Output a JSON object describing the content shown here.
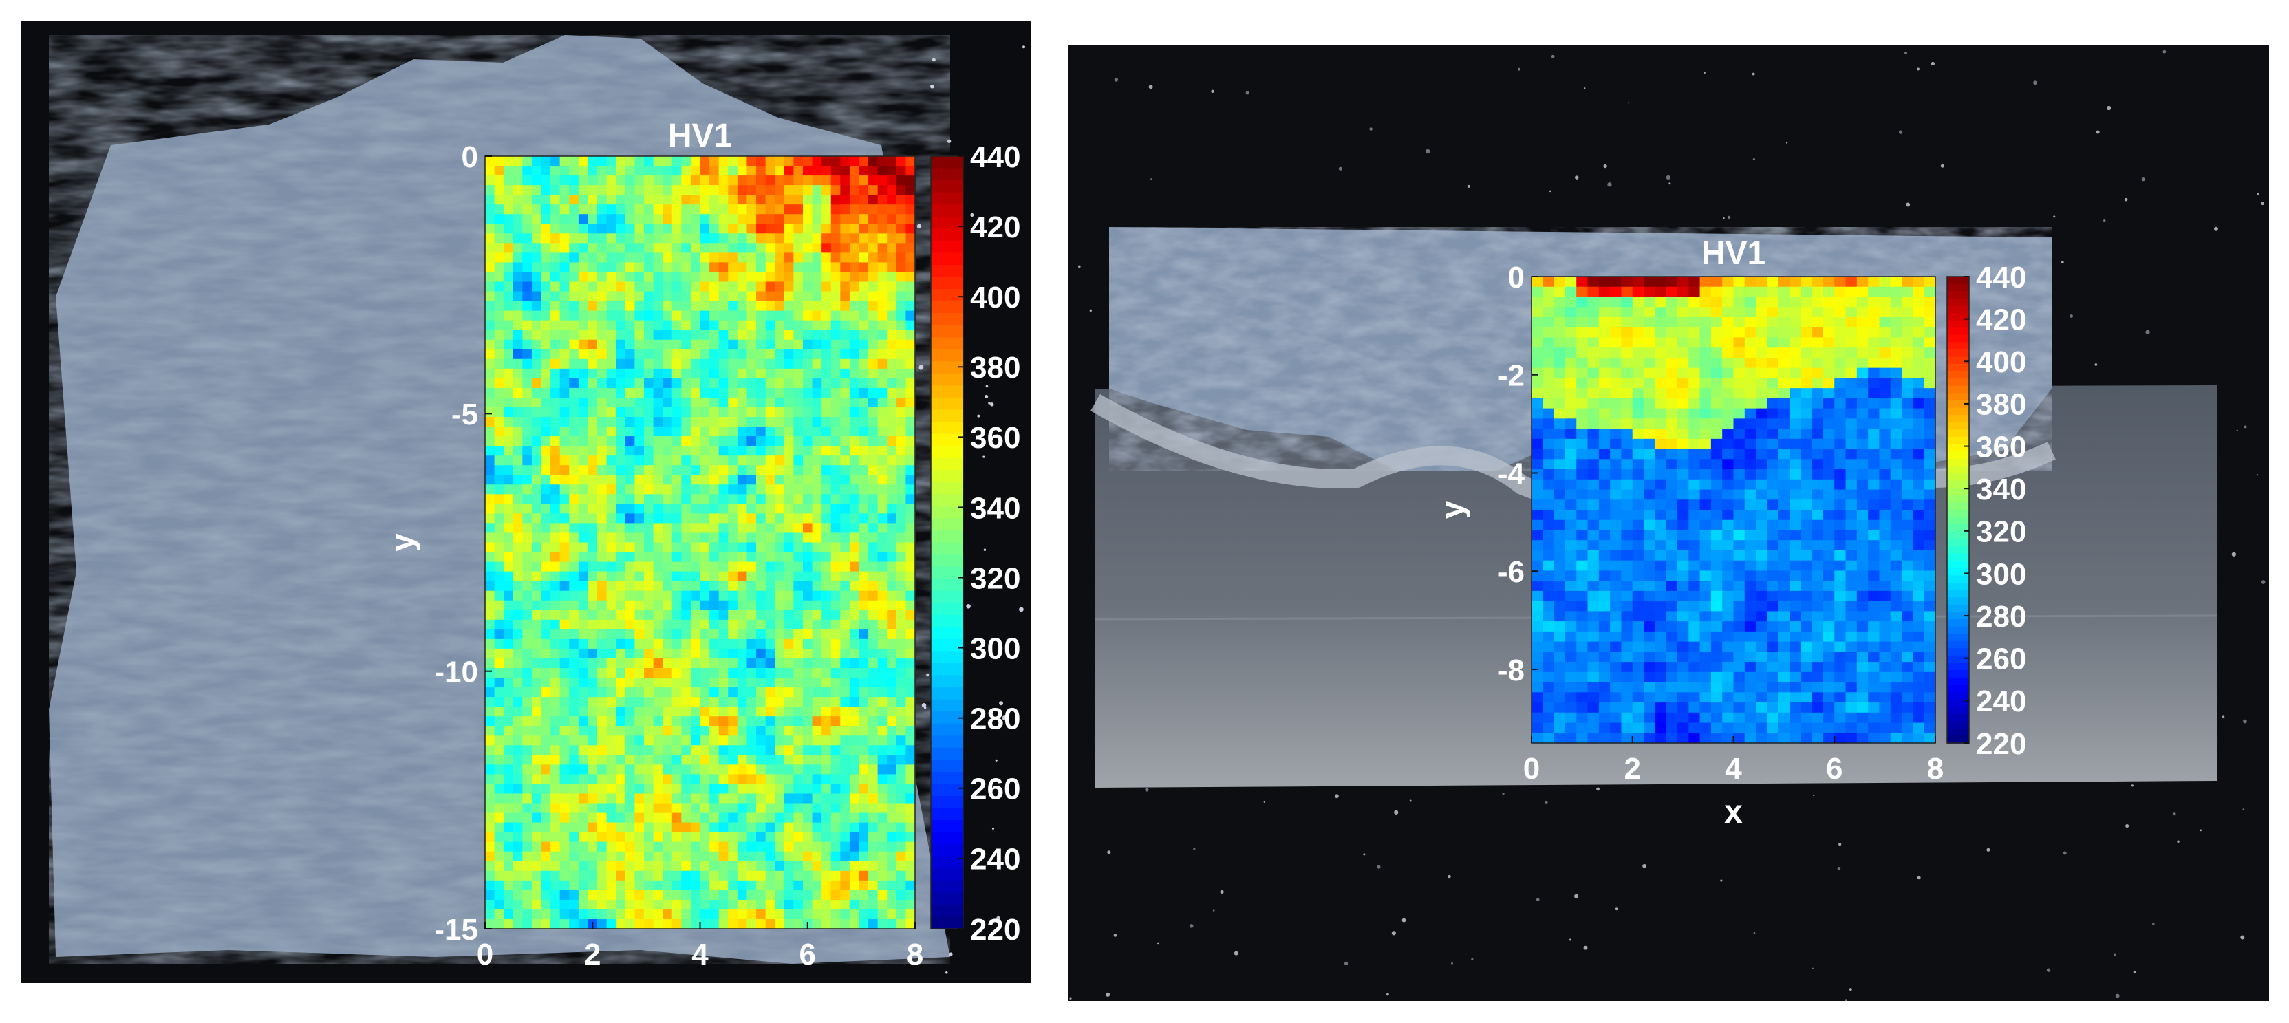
{
  "chart_data": [
    {
      "type": "heatmap",
      "title": "HV1",
      "xlabel": "",
      "ylabel": "y",
      "xlim": [
        0,
        8
      ],
      "ylim": [
        -15,
        0
      ],
      "x_ticks": [
        "0",
        "2",
        "4",
        "6",
        "8"
      ],
      "y_ticks": [
        "0",
        "-5",
        "-10",
        "-15"
      ],
      "colorbar": {
        "min": 220,
        "max": 440,
        "colormap": "jet",
        "ticks": [
          "440",
          "420",
          "400",
          "380",
          "360",
          "340",
          "320",
          "300",
          "280",
          "260",
          "240",
          "220"
        ]
      },
      "value_description": "Hardness field: about 400-430 in the upper right region (x 3-8, y 0 to -3); mostly 320-370 elsewhere with scattered lows near 290-300 and local highs near 380.",
      "colors": {
        "background": "#0b0c0f",
        "sample": "#7d8fa6",
        "text": "#ffffff"
      }
    },
    {
      "type": "heatmap",
      "title": "HV1",
      "xlabel": "x",
      "ylabel": "y",
      "xlim": [
        0,
        8
      ],
      "ylim": [
        -9.5,
        0
      ],
      "x_ticks": [
        "0",
        "2",
        "4",
        "6",
        "8"
      ],
      "y_ticks": [
        "0",
        "-2",
        "-4",
        "-6",
        "-8"
      ],
      "colorbar": {
        "min": 220,
        "max": 440,
        "colormap": "jet",
        "ticks": [
          "440",
          "420",
          "400",
          "380",
          "360",
          "340",
          "320",
          "300",
          "280",
          "260",
          "240",
          "220"
        ]
      },
      "value_description": "Hardness around 330-380 near the top (y 0 to -3), red about 420 at the top edge near x 1-3; sharp drop to 240-300 below a wavy boundary near y -2.5 to -3.5.",
      "colors": {
        "background": "#0b0c0f",
        "sample": "#5f6670",
        "text": "#ffffff"
      }
    }
  ]
}
